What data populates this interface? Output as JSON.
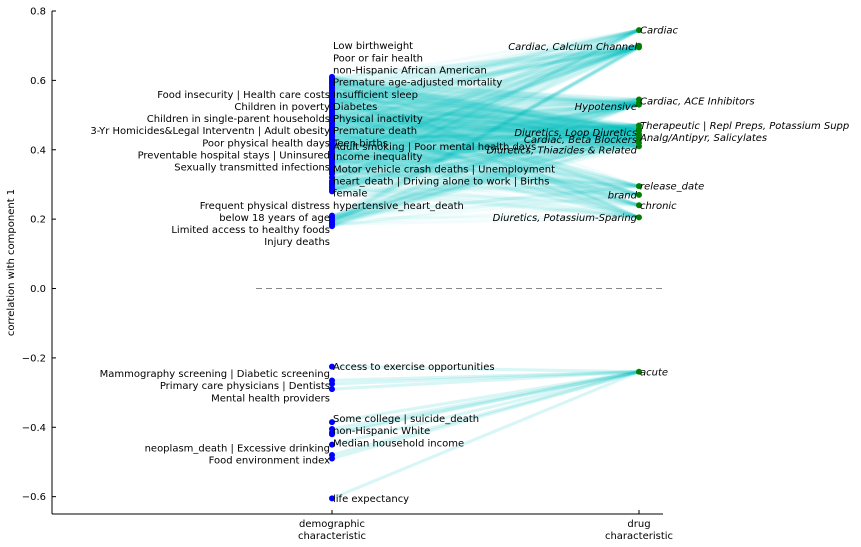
{
  "chart_data": {
    "type": "parallel-coordinates",
    "ylabel": "correlation with component 1",
    "ylim": [
      -0.65,
      0.8
    ],
    "yticks": [
      "−0.6",
      "−0.4",
      "−0.2",
      "0.0",
      "0.2",
      "0.4",
      "0.6",
      "0.8"
    ],
    "ytick_values": [
      -0.6,
      -0.4,
      -0.2,
      0.0,
      0.2,
      0.4,
      0.6,
      0.8
    ],
    "xticks": [
      [
        "demographic",
        "characteristic"
      ],
      [
        "drug",
        "characteristic"
      ]
    ],
    "zero_line": true,
    "colors": {
      "demographic_point": "#0000ff",
      "drug_point": "#008000",
      "link": "#00bfbf",
      "zero_line": "#888888"
    },
    "demographic_points": [
      0.61,
      0.605,
      0.6,
      0.595,
      0.59,
      0.585,
      0.58,
      0.575,
      0.57,
      0.565,
      0.56,
      0.555,
      0.55,
      0.545,
      0.54,
      0.535,
      0.53,
      0.525,
      0.52,
      0.515,
      0.51,
      0.505,
      0.5,
      0.495,
      0.49,
      0.485,
      0.48,
      0.475,
      0.47,
      0.465,
      0.46,
      0.455,
      0.45,
      0.445,
      0.44,
      0.435,
      0.43,
      0.425,
      0.42,
      0.415,
      0.41,
      0.405,
      0.4,
      0.395,
      0.39,
      0.385,
      0.38,
      0.375,
      0.37,
      0.365,
      0.36,
      0.355,
      0.35,
      0.34,
      0.335,
      0.33,
      0.32,
      0.31,
      0.305,
      0.3,
      0.295,
      0.29,
      0.285,
      0.28,
      0.21,
      0.205,
      0.2,
      0.195,
      0.19,
      0.185,
      0.18,
      -0.225,
      -0.265,
      -0.275,
      -0.29,
      -0.385,
      -0.405,
      -0.415,
      -0.42,
      -0.45,
      -0.48,
      -0.49,
      -0.605
    ],
    "drug_points": [
      0.745,
      0.7,
      0.695,
      0.545,
      0.535,
      0.53,
      0.47,
      0.46,
      0.455,
      0.445,
      0.44,
      0.43,
      0.42,
      0.41,
      0.295,
      0.27,
      0.24,
      0.205,
      -0.24
    ],
    "demographic_labels": [
      {
        "text": "Low birthweight",
        "y": 0.7,
        "side": "right"
      },
      {
        "text": "Poor or fair health",
        "y": 0.665,
        "side": "right"
      },
      {
        "text": "non-Hispanic African American",
        "y": 0.63,
        "side": "right"
      },
      {
        "text": "Premature age-adjusted mortality",
        "y": 0.595,
        "side": "right"
      },
      {
        "text": "Food insecurity  | Health care costs",
        "y": 0.56,
        "side": "left"
      },
      {
        "text": "Insufficient sleep",
        "y": 0.56,
        "side": "right"
      },
      {
        "text": "Children in poverty",
        "y": 0.525,
        "side": "left"
      },
      {
        "text": "Diabetes",
        "y": 0.525,
        "side": "right"
      },
      {
        "text": "Children in single-parent households",
        "y": 0.49,
        "side": "left"
      },
      {
        "text": "Physical inactivity",
        "y": 0.49,
        "side": "right"
      },
      {
        "text": "3-Yr Homicides&Legal Interventn | Adult obesity",
        "y": 0.455,
        "side": "left"
      },
      {
        "text": "Premature death",
        "y": 0.455,
        "side": "right"
      },
      {
        "text": "Poor physical health days",
        "y": 0.42,
        "side": "left"
      },
      {
        "text": "Teen births",
        "y": 0.42,
        "side": "right"
      },
      {
        "text": "Adult smoking  | Poor mental health days",
        "y": 0.41,
        "side": "right"
      },
      {
        "text": "Preventable hospital stays  | Uninsured",
        "y": 0.385,
        "side": "left"
      },
      {
        "text": "Income inequality",
        "y": 0.38,
        "side": "right"
      },
      {
        "text": "Sexually transmitted infections",
        "y": 0.35,
        "side": "left"
      },
      {
        "text": "Motor vehicle crash deaths  | Unemployment",
        "y": 0.345,
        "side": "right"
      },
      {
        "text": "heart_death | Driving alone to work  | Births",
        "y": 0.31,
        "side": "right"
      },
      {
        "text": "female",
        "y": 0.275,
        "side": "right"
      },
      {
        "text": "Frequent physical distress",
        "y": 0.24,
        "side": "left"
      },
      {
        "text": "hypertensive_heart_death",
        "y": 0.24,
        "side": "right"
      },
      {
        "text": "below 18 years of age",
        "y": 0.205,
        "side": "left"
      },
      {
        "text": "Limited access to healthy foods",
        "y": 0.17,
        "side": "left"
      },
      {
        "text": "Injury deaths",
        "y": 0.135,
        "side": "left"
      },
      {
        "text": "Access to exercise opportunities",
        "y": -0.225,
        "side": "right"
      },
      {
        "text": "Mammography screening  | Diabetic screening",
        "y": -0.245,
        "side": "left"
      },
      {
        "text": "Primary care physicians  | Dentists",
        "y": -0.28,
        "side": "left"
      },
      {
        "text": "Mental health providers",
        "y": -0.315,
        "side": "left"
      },
      {
        "text": "Some college  | suicide_death",
        "y": -0.375,
        "side": "right"
      },
      {
        "text": "non-Hispanic White",
        "y": -0.41,
        "side": "right"
      },
      {
        "text": "Median household income",
        "y": -0.445,
        "side": "right"
      },
      {
        "text": "neoplasm_death | Excessive drinking",
        "y": -0.46,
        "side": "left"
      },
      {
        "text": "Food environment index",
        "y": -0.495,
        "side": "left"
      },
      {
        "text": "life expectancy",
        "y": -0.605,
        "side": "right"
      }
    ],
    "drug_labels": [
      {
        "text": "Cardiac",
        "y": 0.745,
        "side": "right"
      },
      {
        "text": "Cardiac, Calcium Channel",
        "y": 0.697,
        "side": "left"
      },
      {
        "text": "Cardiac, ACE Inhibitors",
        "y": 0.54,
        "side": "right"
      },
      {
        "text": "Hypotensive",
        "y": 0.525,
        "side": "left"
      },
      {
        "text": "Therapeutic  | Repl Preps, Potassium Supp",
        "y": 0.47,
        "side": "right"
      },
      {
        "text": "Diuretics, Loop Diuretics",
        "y": 0.45,
        "side": "left"
      },
      {
        "text": "Analg/Antipyr, Salicylates",
        "y": 0.435,
        "side": "right"
      },
      {
        "text": "Cardiac, Beta Blockers",
        "y": 0.43,
        "side": "left"
      },
      {
        "text": "Diuretics, Thiazides & Related",
        "y": 0.4,
        "side": "left"
      },
      {
        "text": "release_date",
        "y": 0.295,
        "side": "right"
      },
      {
        "text": "brand",
        "y": 0.27,
        "side": "left"
      },
      {
        "text": "chronic",
        "y": 0.24,
        "side": "right"
      },
      {
        "text": "Diuretics, Potassium-Sparing",
        "y": 0.205,
        "side": "left"
      },
      {
        "text": "acute",
        "y": -0.24,
        "side": "right"
      }
    ]
  }
}
